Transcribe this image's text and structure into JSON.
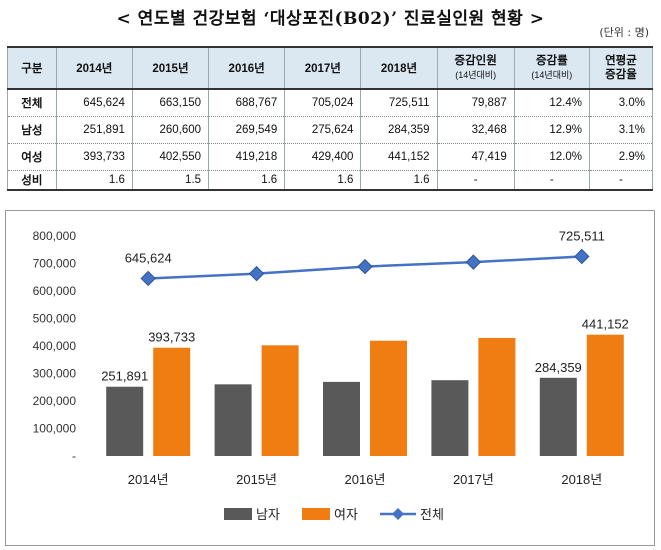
{
  "title": "< 연도별 건강보험 ‘대상포진(B02)’ 진료실인원 현황 >",
  "unit": "(단위 : 명)",
  "table": {
    "headers": [
      "구분",
      "2014년",
      "2015년",
      "2016년",
      "2017년",
      "2018년"
    ],
    "extra_headers": [
      {
        "main": "증감인원",
        "sub": "(14년대비)"
      },
      {
        "main": "증감률",
        "sub": "(14년대비)"
      },
      {
        "main": "연평균",
        "sub": "증감율"
      }
    ],
    "rows": [
      {
        "label": "전체",
        "cells": [
          "645,624",
          "663,150",
          "688,767",
          "705,024",
          "725,511",
          "79,887",
          "12.4%",
          "3.0%"
        ]
      },
      {
        "label": "남성",
        "cells": [
          "251,891",
          "260,600",
          "269,549",
          "275,624",
          "284,359",
          "32,468",
          "12.9%",
          "3.1%"
        ]
      },
      {
        "label": "여성",
        "cells": [
          "393,733",
          "402,550",
          "419,218",
          "429,400",
          "441,152",
          "47,419",
          "12.0%",
          "2.9%"
        ]
      },
      {
        "label": "성비",
        "cells": [
          "1.6",
          "1.5",
          "1.6",
          "1.6",
          "1.6",
          "-",
          "-",
          "-"
        ]
      }
    ]
  },
  "chart_data": {
    "type": "bar",
    "categories": [
      "2014년",
      "2015년",
      "2016년",
      "2017년",
      "2018년"
    ],
    "series": [
      {
        "name": "남자",
        "type": "bar",
        "color": "#595959",
        "values": [
          251891,
          260600,
          269549,
          275624,
          284359
        ]
      },
      {
        "name": "여자",
        "type": "bar",
        "color": "#f07d12",
        "values": [
          393733,
          402550,
          419218,
          429400,
          441152
        ]
      },
      {
        "name": "전체",
        "type": "line",
        "color": "#4472c4",
        "values": [
          645624,
          663150,
          688767,
          705024,
          725511
        ]
      }
    ],
    "ylim": [
      0,
      800000
    ],
    "yticks": [
      "-",
      "100,000",
      "200,000",
      "300,000",
      "400,000",
      "500,000",
      "600,000",
      "700,000",
      "800,000"
    ],
    "data_labels": [
      {
        "series": "전체",
        "index": 0,
        "text": "645,624"
      },
      {
        "series": "전체",
        "index": 4,
        "text": "725,511"
      },
      {
        "series": "여자",
        "index": 0,
        "text": "393,733"
      },
      {
        "series": "여자",
        "index": 4,
        "text": "441,152"
      },
      {
        "series": "남자",
        "index": 0,
        "text": "251,891"
      },
      {
        "series": "남자",
        "index": 4,
        "text": "284,359"
      }
    ],
    "legend_position": "bottom",
    "grid": false
  }
}
